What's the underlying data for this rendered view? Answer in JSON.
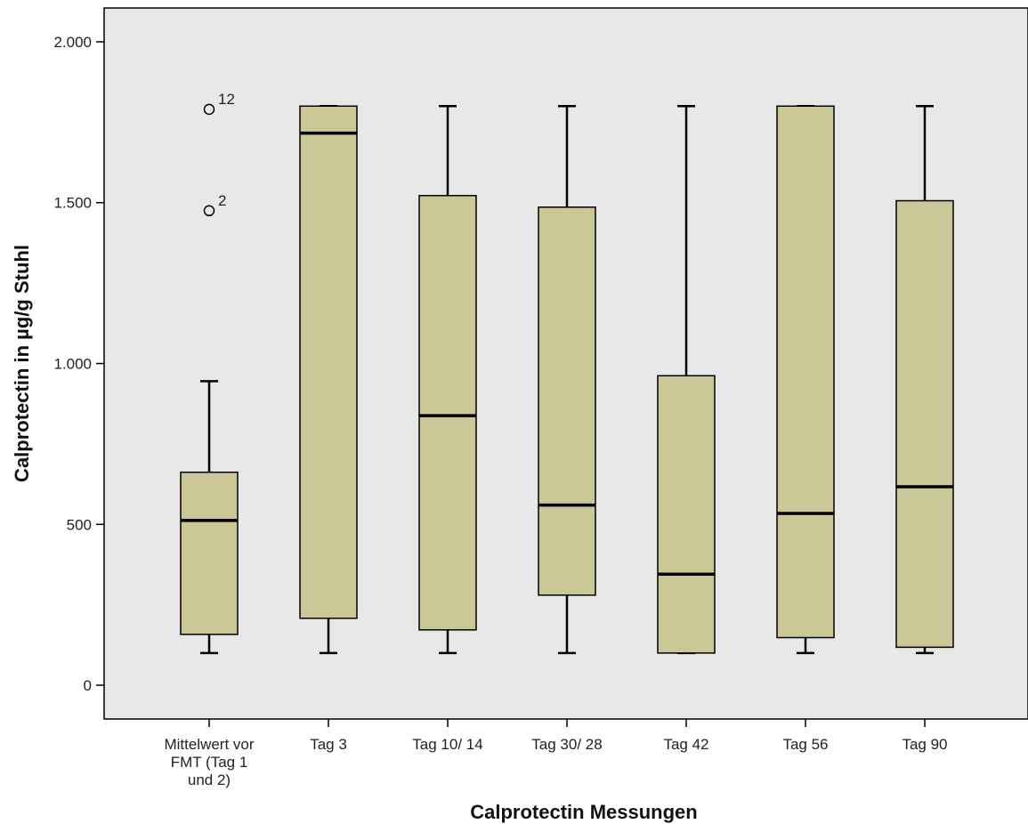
{
  "chart_data": {
    "type": "boxplot",
    "title": "",
    "xlabel": "Calprotectin Messungen",
    "ylabel": "Calprotectin in µg/g Stuhl",
    "ylim": [
      -105,
      2105
    ],
    "yticks": [
      0,
      500,
      1000,
      1500,
      2000
    ],
    "ytick_labels": [
      "0",
      "500",
      "1.000",
      "1.500",
      "2.000"
    ],
    "grid": false,
    "colors": {
      "plot_bg": "#e8e8e8",
      "box_fill": "#cbc897",
      "stroke": "#000000"
    },
    "categories": [
      [
        "Mittelwert vor",
        "FMT (Tag 1",
        "und 2)"
      ],
      [
        "Tag 3"
      ],
      [
        "Tag 10/ 14"
      ],
      [
        "Tag 30/ 28"
      ],
      [
        "Tag 42"
      ],
      [
        "Tag 56"
      ],
      [
        "Tag 90"
      ]
    ],
    "boxes": [
      {
        "whisker_low": 100,
        "q1": 158,
        "median": 512,
        "q3": 662,
        "whisker_high": 945,
        "outliers": [
          {
            "value": 1790,
            "label": "12"
          },
          {
            "value": 1475,
            "label": "2"
          }
        ]
      },
      {
        "whisker_low": 100,
        "q1": 208,
        "median": 1716,
        "q3": 1800,
        "whisker_high": 1800,
        "outliers": []
      },
      {
        "whisker_low": 100,
        "q1": 172,
        "median": 838,
        "q3": 1522,
        "whisker_high": 1800,
        "outliers": []
      },
      {
        "whisker_low": 100,
        "q1": 280,
        "median": 560,
        "q3": 1486,
        "whisker_high": 1800,
        "outliers": []
      },
      {
        "whisker_low": 100,
        "q1": 100,
        "median": 345,
        "q3": 962,
        "whisker_high": 1800,
        "outliers": []
      },
      {
        "whisker_low": 100,
        "q1": 148,
        "median": 534,
        "q3": 1800,
        "whisker_high": 1800,
        "outliers": []
      },
      {
        "whisker_low": 100,
        "q1": 118,
        "median": 617,
        "q3": 1506,
        "whisker_high": 1800,
        "outliers": []
      }
    ]
  }
}
